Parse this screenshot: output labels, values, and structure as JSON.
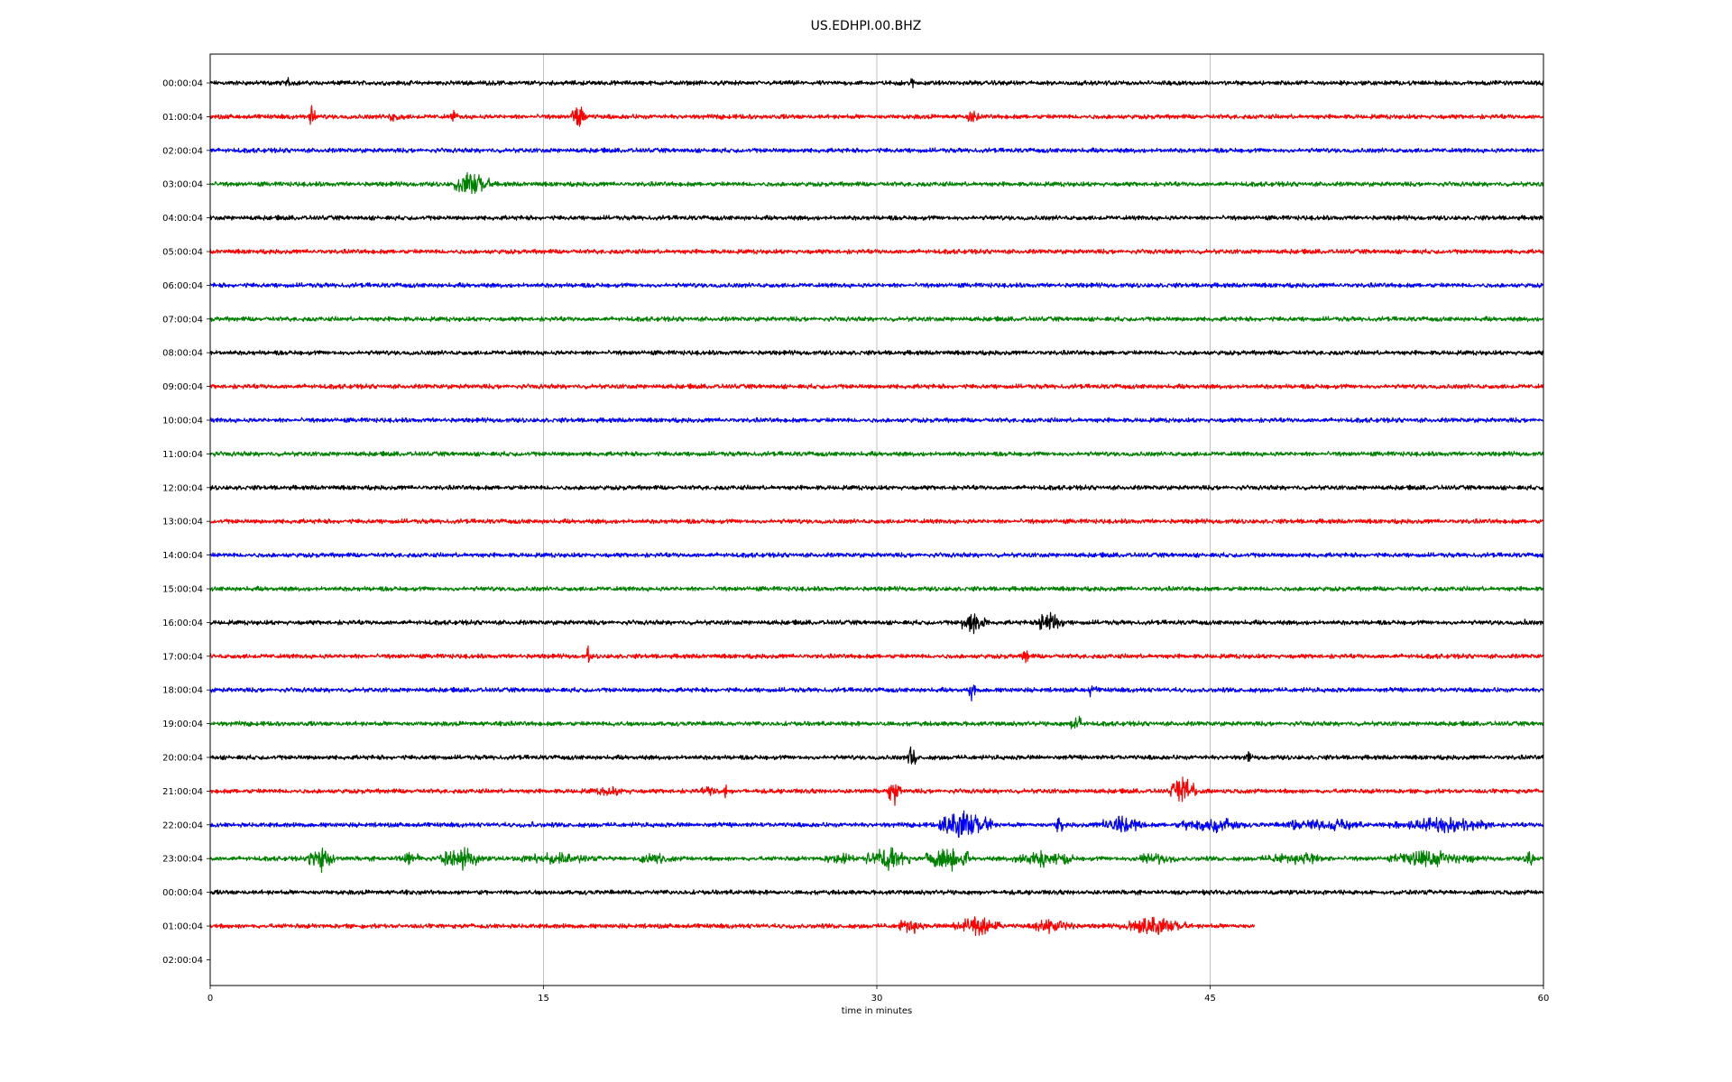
{
  "chart_data": {
    "type": "line",
    "title": "US.EDHPI.00.BHZ",
    "xlabel": "time in minutes",
    "ylabel": "",
    "xlim": [
      0,
      60
    ],
    "x_ticks": [
      0,
      15,
      30,
      45,
      60
    ],
    "x_tick_labels": [
      "0",
      "15",
      "30",
      "45",
      "60"
    ],
    "grid": "vertical lines at x ticks",
    "trace_colors": [
      "#000000",
      "#ff0000",
      "#0000ff",
      "#008000"
    ],
    "rows": [
      {
        "label": "00:00:04",
        "end_minute": 60,
        "events": [
          {
            "t": 3.5,
            "a": 0.35,
            "d": 0.3
          },
          {
            "t": 31.6,
            "a": 1.0,
            "d": 0.15
          }
        ]
      },
      {
        "label": "01:00:04",
        "end_minute": 60,
        "events": [
          {
            "t": 4.6,
            "a": 0.9,
            "d": 0.3
          },
          {
            "t": 8.3,
            "a": 0.3,
            "d": 1.6
          },
          {
            "t": 11.0,
            "a": 0.45,
            "d": 0.4
          },
          {
            "t": 16.6,
            "a": 0.85,
            "d": 0.8
          },
          {
            "t": 34.3,
            "a": 0.4,
            "d": 0.8
          }
        ]
      },
      {
        "label": "02:00:04",
        "end_minute": 60,
        "events": [
          {
            "t": 17.1,
            "a": 0.2,
            "d": 0.1
          },
          {
            "t": 30.5,
            "a": 0.2,
            "d": 0.2
          }
        ]
      },
      {
        "label": "03:00:04",
        "end_minute": 60,
        "events": [
          {
            "t": 1.2,
            "a": 0.2,
            "d": 0.1
          },
          {
            "t": 11.8,
            "a": 0.85,
            "d": 1.6
          }
        ]
      },
      {
        "label": "04:00:04",
        "end_minute": 60,
        "events": [
          {
            "t": 33.6,
            "a": 0.2,
            "d": 0.4
          }
        ]
      },
      {
        "label": "05:00:04",
        "end_minute": 60,
        "events": [
          {
            "t": 42.3,
            "a": 0.2,
            "d": 0.4
          }
        ]
      },
      {
        "label": "06:00:04",
        "end_minute": 60,
        "events": []
      },
      {
        "label": "07:00:04",
        "end_minute": 60,
        "events": []
      },
      {
        "label": "08:00:04",
        "end_minute": 60,
        "events": [
          {
            "t": 31.2,
            "a": 0.2,
            "d": 0.1
          },
          {
            "t": 37.4,
            "a": 0.2,
            "d": 0.2
          }
        ]
      },
      {
        "label": "09:00:04",
        "end_minute": 60,
        "events": [
          {
            "t": 25.0,
            "a": 0.18,
            "d": 0.4
          }
        ]
      },
      {
        "label": "10:00:04",
        "end_minute": 60,
        "events": [
          {
            "t": 19.5,
            "a": 0.2,
            "d": 0.2
          }
        ]
      },
      {
        "label": "11:00:04",
        "end_minute": 60,
        "events": [
          {
            "t": 39.0,
            "a": 0.2,
            "d": 0.3
          }
        ]
      },
      {
        "label": "12:00:04",
        "end_minute": 60,
        "events": [
          {
            "t": 20.8,
            "a": 0.18,
            "d": 0.2
          }
        ]
      },
      {
        "label": "13:00:04",
        "end_minute": 60,
        "events": [
          {
            "t": 35.2,
            "a": 0.2,
            "d": 0.2
          }
        ]
      },
      {
        "label": "14:00:04",
        "end_minute": 60,
        "events": [
          {
            "t": 47.6,
            "a": 0.2,
            "d": 0.2
          }
        ]
      },
      {
        "label": "15:00:04",
        "end_minute": 60,
        "events": [
          {
            "t": 14.6,
            "a": 0.18,
            "d": 0.2
          }
        ]
      },
      {
        "label": "16:00:04",
        "end_minute": 60,
        "events": [
          {
            "t": 16.1,
            "a": 0.2,
            "d": 0.2
          },
          {
            "t": 34.4,
            "a": 0.9,
            "d": 1.2
          },
          {
            "t": 37.8,
            "a": 0.75,
            "d": 1.3
          },
          {
            "t": 59.2,
            "a": 0.3,
            "d": 0.3
          }
        ]
      },
      {
        "label": "17:00:04",
        "end_minute": 60,
        "events": [
          {
            "t": 17.0,
            "a": 0.9,
            "d": 0.15
          },
          {
            "t": 36.7,
            "a": 0.4,
            "d": 0.4
          }
        ]
      },
      {
        "label": "18:00:04",
        "end_minute": 60,
        "events": [
          {
            "t": 34.3,
            "a": 0.8,
            "d": 0.3
          },
          {
            "t": 39.7,
            "a": 0.6,
            "d": 0.4
          }
        ]
      },
      {
        "label": "19:00:04",
        "end_minute": 60,
        "events": [
          {
            "t": 13.4,
            "a": 0.3,
            "d": 0.1
          },
          {
            "t": 18.2,
            "a": 0.35,
            "d": 0.3
          },
          {
            "t": 39.0,
            "a": 0.65,
            "d": 0.6
          }
        ]
      },
      {
        "label": "20:00:04",
        "end_minute": 60,
        "events": [
          {
            "t": 31.6,
            "a": 0.85,
            "d": 0.4
          },
          {
            "t": 46.7,
            "a": 0.55,
            "d": 0.3
          }
        ]
      },
      {
        "label": "21:00:04",
        "end_minute": 60,
        "events": [
          {
            "t": 18.0,
            "a": 0.3,
            "d": 3.0
          },
          {
            "t": 22.5,
            "a": 0.35,
            "d": 1.3
          },
          {
            "t": 23.2,
            "a": 0.9,
            "d": 0.15
          },
          {
            "t": 30.8,
            "a": 0.9,
            "d": 0.6
          },
          {
            "t": 43.8,
            "a": 0.9,
            "d": 1.2
          }
        ]
      },
      {
        "label": "22:00:04",
        "end_minute": 60,
        "events": [
          {
            "t": 14.5,
            "a": 0.35,
            "d": 0.1
          },
          {
            "t": 34.0,
            "a": 0.9,
            "d": 2.4
          },
          {
            "t": 38.2,
            "a": 0.75,
            "d": 0.4
          },
          {
            "t": 41.0,
            "a": 0.55,
            "d": 2.4
          },
          {
            "t": 45.0,
            "a": 0.55,
            "d": 3.2
          },
          {
            "t": 50.0,
            "a": 0.45,
            "d": 4.0
          },
          {
            "t": 55.5,
            "a": 0.5,
            "d": 5.0
          }
        ]
      },
      {
        "label": "23:00:04",
        "end_minute": 60,
        "events": [
          {
            "t": 5.0,
            "a": 0.95,
            "d": 1.2
          },
          {
            "t": 9.0,
            "a": 0.4,
            "d": 1.6
          },
          {
            "t": 11.3,
            "a": 0.75,
            "d": 2.0
          },
          {
            "t": 15.5,
            "a": 0.4,
            "d": 4.0
          },
          {
            "t": 20.0,
            "a": 0.35,
            "d": 2.4
          },
          {
            "t": 28.3,
            "a": 0.4,
            "d": 1.6
          },
          {
            "t": 30.5,
            "a": 0.75,
            "d": 2.0
          },
          {
            "t": 33.2,
            "a": 0.95,
            "d": 2.0
          },
          {
            "t": 37.5,
            "a": 0.6,
            "d": 2.8
          },
          {
            "t": 42.5,
            "a": 0.4,
            "d": 2.4
          },
          {
            "t": 49.0,
            "a": 0.4,
            "d": 4.0
          },
          {
            "t": 55.0,
            "a": 0.55,
            "d": 4.0
          },
          {
            "t": 59.4,
            "a": 0.45,
            "d": 0.6
          }
        ]
      },
      {
        "label": "00:00:04",
        "end_minute": 60,
        "events": [
          {
            "t": 54.0,
            "a": 0.18,
            "d": 0.3
          }
        ]
      },
      {
        "label": "01:00:04",
        "end_minute": 47.0,
        "events": [
          {
            "t": 31.5,
            "a": 0.6,
            "d": 1.2
          },
          {
            "t": 34.5,
            "a": 0.6,
            "d": 2.4
          },
          {
            "t": 38.0,
            "a": 0.55,
            "d": 2.0
          },
          {
            "t": 42.5,
            "a": 0.55,
            "d": 3.2
          }
        ]
      },
      {
        "label": "02:00:04",
        "end_minute": 0,
        "events": []
      }
    ]
  }
}
